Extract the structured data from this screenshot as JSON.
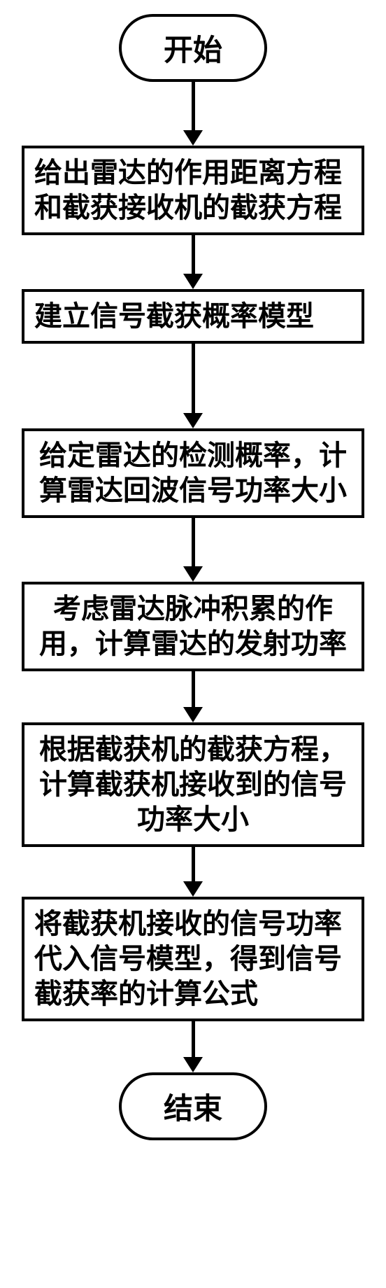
{
  "flow": {
    "start": "开始",
    "end": "结束",
    "steps": [
      "给出雷达的作用距离方程和截获接收机的截获方程",
      "建立信号截获概率模型",
      "给定雷达的检测概率，计算雷达回波信号功率大小",
      "考虑雷达脉冲积累的作用，计算雷达的发射功率",
      "根据截获机的截获方程，计算截获机接收到的信号功率大小",
      "将截获机接收的信号功率代入信号模型，得到信号截获率的计算公式"
    ],
    "arrow_heights": [
      70,
      56,
      100,
      70,
      52,
      50,
      52,
      58
    ],
    "colors": {
      "stroke": "#000000",
      "background": "#ffffff",
      "text": "#000000"
    },
    "border_width": 4,
    "font_size": 40,
    "terminal_font_size": 42
  }
}
